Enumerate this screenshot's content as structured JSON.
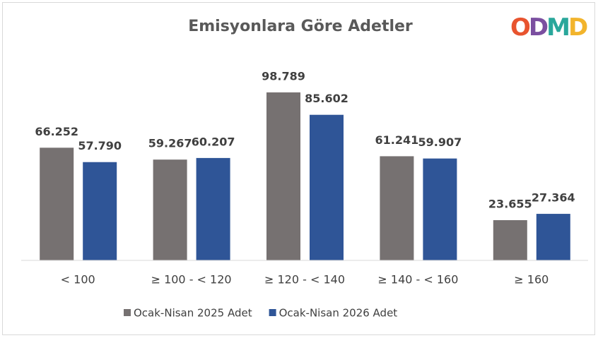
{
  "chart_data": {
    "type": "bar",
    "title": "Emisyonlara Göre Adetler",
    "logo": "ODMD",
    "categories": [
      "< 100",
      "≥ 100 - < 120",
      "≥ 120 - < 140",
      "≥ 140 - < 160",
      "≥  160"
    ],
    "series": [
      {
        "name": "Ocak-Nisan 2025 Adet",
        "color": "#767171",
        "values": [
          66252,
          59267,
          98789,
          61241,
          23655
        ],
        "value_labels": [
          "66.252",
          "59.267",
          "98.789",
          "61.241",
          "23.655"
        ]
      },
      {
        "name": "Ocak-Nisan 2026 Adet",
        "color": "#2f5597",
        "values": [
          57790,
          60207,
          85602,
          59907,
          27364
        ],
        "value_labels": [
          "57.790",
          "60.207",
          "85.602",
          "59.907",
          "27.364"
        ]
      }
    ],
    "ylim": [
      0,
      100000
    ]
  }
}
